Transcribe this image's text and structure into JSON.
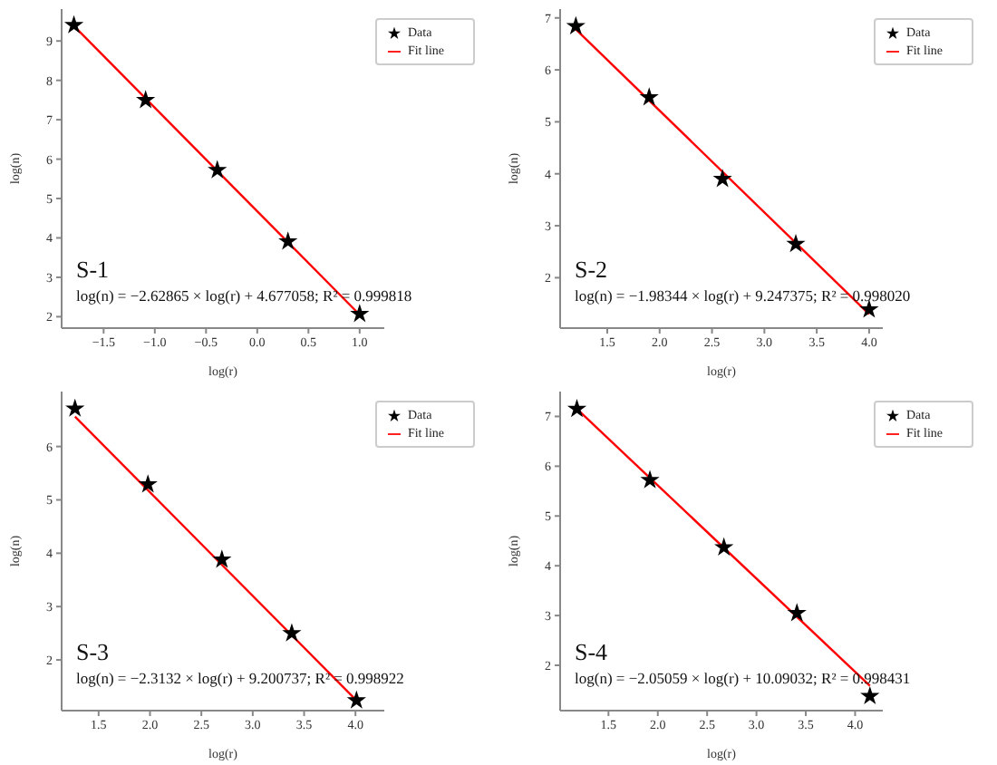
{
  "chart_data": [
    {
      "type": "scatter",
      "xlabel": "log(r)",
      "ylabel": "log(n)",
      "xlim": [
        -1.91,
        1.24
      ],
      "ylim": [
        1.71,
        9.81
      ],
      "xticks": [
        {
          "value": -1.5,
          "label": "−1.5"
        },
        {
          "value": -1.0,
          "label": "−1.0"
        },
        {
          "value": -0.5,
          "label": "−0.5"
        },
        {
          "value": 0,
          "label": "0.0"
        },
        {
          "value": 0.5,
          "label": "0.5"
        },
        {
          "value": 1.0,
          "label": "1.0"
        }
      ],
      "yticks": [
        2,
        3,
        4,
        5,
        6,
        7,
        8,
        9
      ],
      "legend": "top right",
      "series": [
        {
          "name": "Data",
          "marker": "star",
          "color": "#000000",
          "x": [
            -1.79,
            -1.09,
            -0.39,
            0.3,
            1.0
          ],
          "values": [
            9.4,
            7.5,
            5.72,
            3.91,
            2.07
          ]
        },
        {
          "name": "Fit line",
          "type": "line",
          "marker": "none",
          "color": "#ff0000",
          "x": [
            -1.79,
            1.0
          ],
          "values": [
            9.38,
            2.05
          ]
        }
      ],
      "annotations": [
        "S-1",
        "log(n) = −2.62865 × log(r) + 4.677058; R² = 0.999818"
      ]
    },
    {
      "type": "scatter",
      "xlabel": "log(r)",
      "ylabel": "log(n)",
      "xlim": [
        1.05,
        4.13
      ],
      "ylim": [
        1.03,
        7.17
      ],
      "xticks": [
        {
          "value": 1.5,
          "label": "1.5"
        },
        {
          "value": 2.0,
          "label": "2.0"
        },
        {
          "value": 2.5,
          "label": "2.5"
        },
        {
          "value": 3.0,
          "label": "3.0"
        },
        {
          "value": 3.5,
          "label": "3.5"
        },
        {
          "value": 4.0,
          "label": "4.0"
        }
      ],
      "yticks": [
        2,
        3,
        4,
        5,
        6,
        7
      ],
      "legend": "top right",
      "series": [
        {
          "name": "Data",
          "marker": "star",
          "color": "#000000",
          "x": [
            1.2,
            1.9,
            2.6,
            3.3,
            4.0
          ],
          "values": [
            6.84,
            5.47,
            3.9,
            2.65,
            1.39
          ]
        },
        {
          "name": "Fit line",
          "type": "line",
          "marker": "none",
          "color": "#ff0000",
          "x": [
            1.2,
            4.0
          ],
          "values": [
            6.78,
            1.3
          ]
        }
      ],
      "annotations": [
        "S-2",
        "log(n) = −1.98344 × log(r) + 9.247375; R² = 0.998020"
      ]
    },
    {
      "type": "scatter",
      "xlabel": "log(r)",
      "ylabel": "log(n)",
      "xlim": [
        1.14,
        4.28
      ],
      "ylim": [
        1.05,
        7.03
      ],
      "xticks": [
        {
          "value": 1.5,
          "label": "1.5"
        },
        {
          "value": 2.0,
          "label": "2.0"
        },
        {
          "value": 2.5,
          "label": "2.5"
        },
        {
          "value": 3.0,
          "label": "3.0"
        },
        {
          "value": 3.5,
          "label": "3.5"
        },
        {
          "value": 4.0,
          "label": "4.0"
        }
      ],
      "yticks": [
        2,
        3,
        4,
        5,
        6
      ],
      "legend": "top right",
      "series": [
        {
          "name": "Data",
          "marker": "star",
          "color": "#000000",
          "x": [
            1.27,
            1.98,
            2.7,
            3.38,
            4.01
          ],
          "values": [
            6.71,
            5.29,
            3.88,
            2.5,
            1.24
          ]
        },
        {
          "name": "Fit line",
          "type": "line",
          "marker": "none",
          "color": "#ff0000",
          "x": [
            1.27,
            4.01
          ],
          "values": [
            6.56,
            1.24
          ]
        }
      ],
      "annotations": [
        "S-3",
        "log(n) = −2.3132 × log(r) + 9.200737; R² = 0.998922"
      ]
    },
    {
      "type": "scatter",
      "xlabel": "log(r)",
      "ylabel": "log(n)",
      "xlim": [
        1.01,
        4.28
      ],
      "ylim": [
        1.09,
        7.5
      ],
      "xticks": [
        {
          "value": 1.5,
          "label": "1.5"
        },
        {
          "value": 2.0,
          "label": "2.0"
        },
        {
          "value": 2.5,
          "label": "2.5"
        },
        {
          "value": 3.0,
          "label": "3.0"
        },
        {
          "value": 3.5,
          "label": "3.5"
        },
        {
          "value": 4.0,
          "label": "4.0"
        }
      ],
      "yticks": [
        2,
        3,
        4,
        5,
        6,
        7
      ],
      "legend": "top right",
      "series": [
        {
          "name": "Data",
          "marker": "star",
          "color": "#000000",
          "x": [
            1.18,
            1.92,
            2.67,
            3.41,
            4.15
          ],
          "values": [
            7.15,
            5.72,
            4.37,
            3.05,
            1.38
          ]
        },
        {
          "name": "Fit line",
          "type": "line",
          "marker": "none",
          "color": "#ff0000",
          "x": [
            1.18,
            4.15
          ],
          "values": [
            7.15,
            1.59
          ]
        }
      ],
      "annotations": [
        "S-4",
        "log(n) = −2.05059 × log(r) + 10.09032; R² = 0.998431"
      ]
    }
  ]
}
